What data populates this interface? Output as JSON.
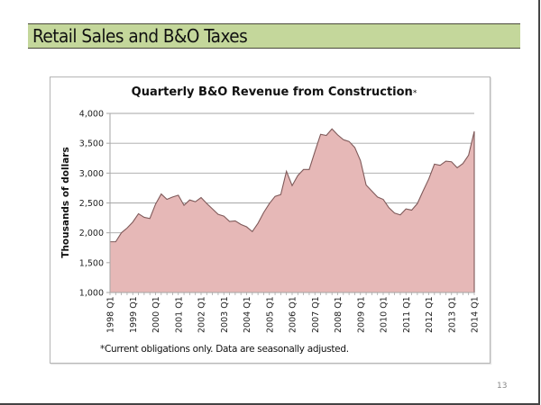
{
  "slide": {
    "title": "Retail Sales and B&O Taxes",
    "page_number": "13",
    "title_bar_color": "#c4d79b"
  },
  "chart_data": {
    "type": "area",
    "title": "Quarterly B&O Revenue from Construction",
    "title_marker": "*",
    "xlabel": "",
    "ylabel": "Thousands of dollars",
    "ylim": [
      1000,
      4000
    ],
    "yticks": [
      1000,
      1500,
      2000,
      2500,
      3000,
      3500,
      4000
    ],
    "ytick_labels": [
      "1,000",
      "1,500",
      "2,000",
      "2,500",
      "3,000",
      "3,500",
      "4,000"
    ],
    "xtick_labels": [
      "1998 Q1",
      "1999 Q1",
      "2000 Q1",
      "2001 Q1",
      "2002 Q1",
      "2003 Q1",
      "2004 Q1",
      "2005 Q1",
      "2006 Q1",
      "2007 Q1",
      "2008 Q1",
      "2009 Q1",
      "2010 Q1",
      "2011 Q1",
      "2012 Q1",
      "2013 Q1",
      "2014 Q1"
    ],
    "grid": true,
    "fill_color": "#e6b8b7",
    "line_color": "#7f5a5a",
    "series": [
      {
        "name": "B&O Revenue from Construction",
        "x_start": "1998 Q1",
        "frequency": "quarterly",
        "values": [
          1850,
          1850,
          2000,
          2080,
          2180,
          2320,
          2260,
          2240,
          2480,
          2650,
          2560,
          2600,
          2630,
          2460,
          2550,
          2520,
          2590,
          2490,
          2400,
          2310,
          2280,
          2190,
          2200,
          2140,
          2100,
          2020,
          2160,
          2340,
          2490,
          2610,
          2640,
          3030,
          2790,
          2960,
          3060,
          3060,
          3360,
          3650,
          3630,
          3740,
          3640,
          3560,
          3530,
          3430,
          3210,
          2800,
          2700,
          2600,
          2560,
          2420,
          2330,
          2300,
          2400,
          2380,
          2490,
          2700,
          2900,
          3150,
          3130,
          3200,
          3190,
          3090,
          3160,
          3300,
          3700
        ]
      }
    ],
    "footnote": "*Current obligations only.  Data are seasonally adjusted."
  }
}
